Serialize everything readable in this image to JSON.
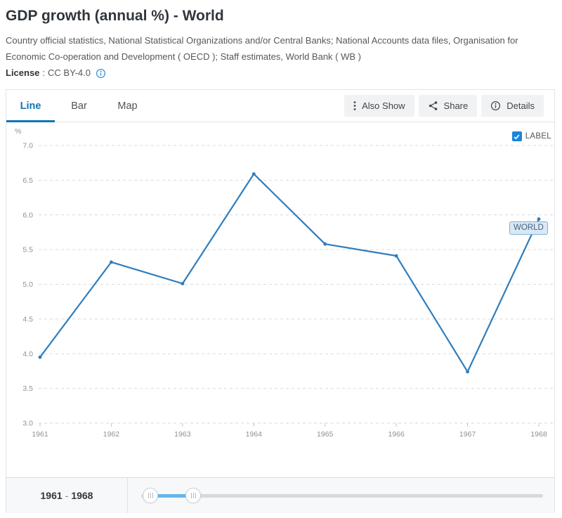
{
  "header": {
    "title": "GDP growth (annual %) - World",
    "source": "Country official statistics, National Statistical Organizations and/or Central Banks; National Accounts data files, Organisation for Economic Co-operation and Development ( OECD ); Staff estimates, World Bank ( WB )",
    "license_label": "License",
    "license_separator": ":",
    "license_value": "CC BY-4.0"
  },
  "tabs": [
    {
      "label": "Line",
      "active": true
    },
    {
      "label": "Bar",
      "active": false
    },
    {
      "label": "Map",
      "active": false
    }
  ],
  "toolbar": {
    "also_show": "Also Show",
    "share": "Share",
    "details": "Details"
  },
  "chart": {
    "label_toggle": "LABEL",
    "label_checked": true,
    "series_badge": "WORLD"
  },
  "footer": {
    "range_start": "1961",
    "range_separator": "-",
    "range_end": "1968"
  },
  "colors": {
    "accent_blue": "#1274b8",
    "line_blue": "#2e7dbd",
    "checkbox_blue": "#1b85d9",
    "slider_blue": "#67b6e8",
    "badge_bg": "#d9e8f5",
    "badge_border": "#7fafd6"
  },
  "chart_data": {
    "type": "line",
    "title": "GDP growth (annual %) - World",
    "categories": [
      "1961",
      "1962",
      "1963",
      "1964",
      "1965",
      "1966",
      "1967",
      "1968"
    ],
    "series": [
      {
        "name": "WORLD",
        "values": [
          3.95,
          5.32,
          5.01,
          6.59,
          5.58,
          5.41,
          3.74,
          5.94
        ]
      }
    ],
    "xlabel": "",
    "ylabel": "%",
    "ylim": [
      3.0,
      7.0
    ],
    "yticks": [
      "7.0",
      "6.5",
      "6.0",
      "5.5",
      "5.0",
      "4.5",
      "4.0",
      "3.5",
      "3.0"
    ],
    "grid": "dashed-horizontal",
    "legend_position": "none"
  }
}
